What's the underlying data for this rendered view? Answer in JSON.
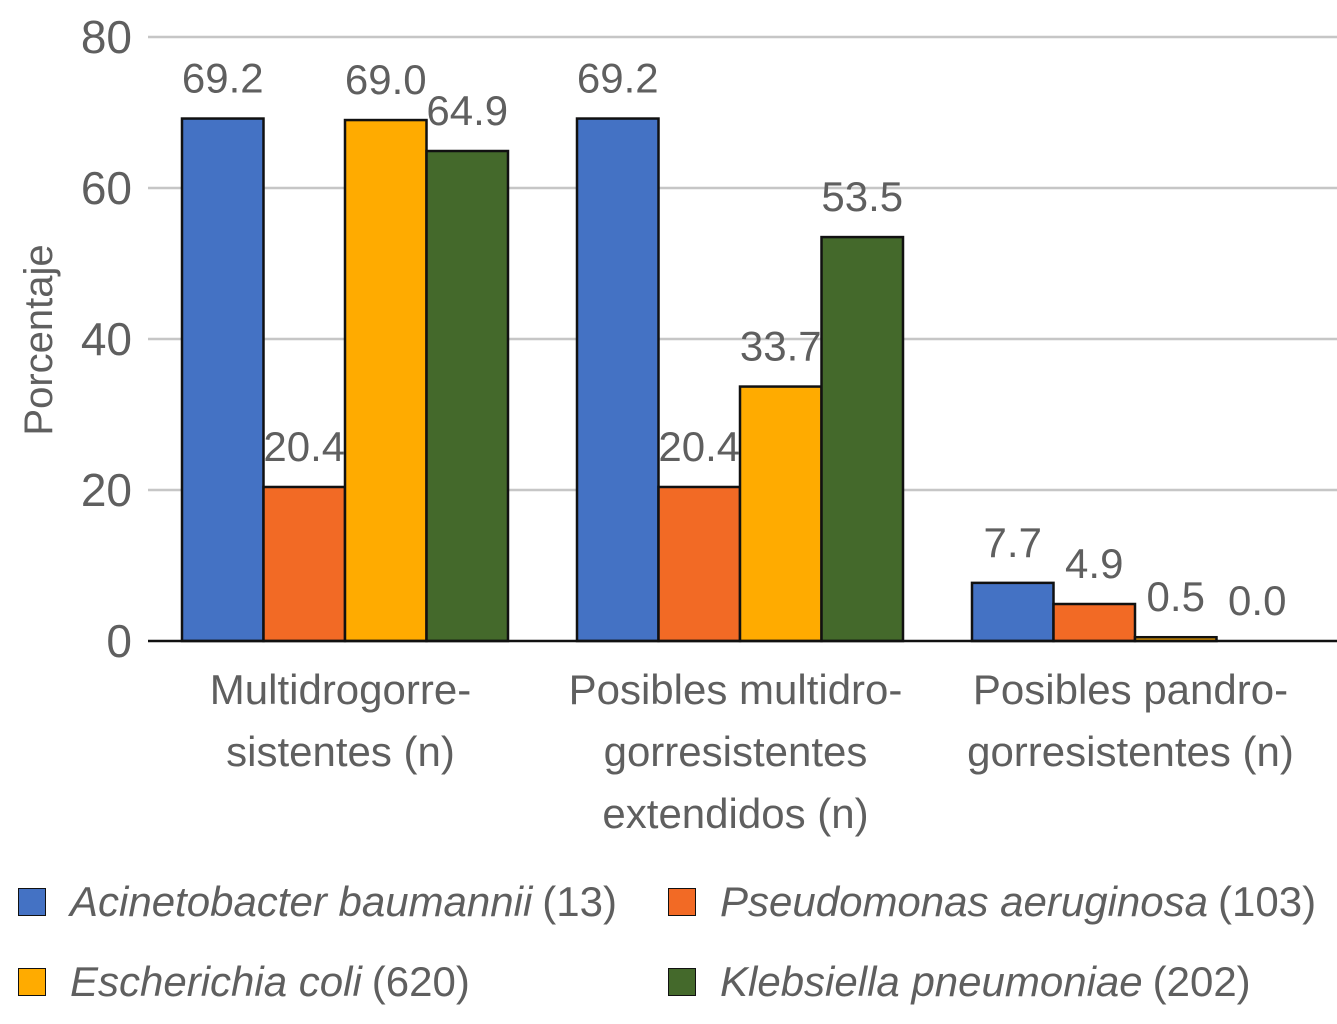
{
  "chart_data": {
    "type": "bar",
    "title": "",
    "xlabel": "",
    "ylabel": "Porcentaje",
    "ylim": [
      0,
      80
    ],
    "yticks": [
      0,
      20,
      40,
      60,
      80
    ],
    "grid": true,
    "legend_position": "bottom",
    "categories": [
      [
        "Multidrogorre-",
        "sistentes (n)"
      ],
      [
        "Posibles multidro-",
        "gorresistentes",
        "extendidos (n)"
      ],
      [
        "Posibles pandro-",
        "gorresistentes (n)"
      ]
    ],
    "series": [
      {
        "name": "Acinetobacter baumannii",
        "count": "(13)",
        "color": "#4472C4",
        "values": [
          69.2,
          69.2,
          7.7
        ],
        "labels": [
          "69.2",
          "69.2",
          "7.7"
        ]
      },
      {
        "name": "Pseudomonas aeruginosa",
        "count": "(103)",
        "color": "#F26A25",
        "values": [
          20.4,
          20.4,
          4.9
        ],
        "labels": [
          "20.4",
          "20.4",
          "4.9"
        ]
      },
      {
        "name": "Escherichia coli",
        "count": "(620)",
        "color": "#FFAB00",
        "values": [
          69.0,
          33.7,
          0.5
        ],
        "labels": [
          "69.0",
          "33.7",
          "0.5"
        ]
      },
      {
        "name": "Klebsiella pneumoniae",
        "count": "(202)",
        "color": "#44692B",
        "values": [
          64.9,
          53.5,
          0.0
        ],
        "labels": [
          "64.9",
          "53.5",
          "0.0"
        ]
      }
    ]
  }
}
